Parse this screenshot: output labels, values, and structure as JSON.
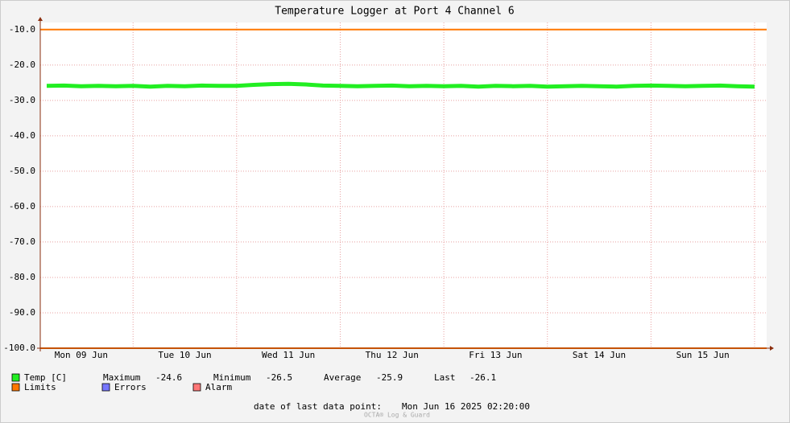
{
  "chart_data": {
    "type": "line",
    "title": "Temperature Logger at Port 4 Channel 6",
    "xlim": [
      2.5,
      170.8
    ],
    "xticks": [
      {
        "value": 12,
        "label": "Mon 09 Jun"
      },
      {
        "value": 36,
        "label": "Tue 10 Jun"
      },
      {
        "value": 60,
        "label": "Wed 11 Jun"
      },
      {
        "value": 84,
        "label": "Thu 12 Jun"
      },
      {
        "value": 108,
        "label": "Fri 13 Jun"
      },
      {
        "value": 132,
        "label": "Sat 14 Jun"
      },
      {
        "value": 156,
        "label": "Sun 15 Jun"
      }
    ],
    "xgrid": [
      24,
      48,
      72,
      96,
      120,
      144,
      168
    ],
    "ylim": [
      -100,
      -8
    ],
    "yticks": [
      {
        "value": -10,
        "label": "-10.0"
      },
      {
        "value": -20,
        "label": "-20.0"
      },
      {
        "value": -30,
        "label": "-30.0"
      },
      {
        "value": -40,
        "label": "-40.0"
      },
      {
        "value": -50,
        "label": "-50.0"
      },
      {
        "value": -60,
        "label": "-60.0"
      },
      {
        "value": -70,
        "label": "-70.0"
      },
      {
        "value": -80,
        "label": "-80.0"
      },
      {
        "value": -90,
        "label": "-90.0"
      },
      {
        "value": -100,
        "label": "-100.0"
      }
    ],
    "grid": true,
    "series": [
      {
        "name": "Temp [C]",
        "color": "#22ee22",
        "x": [
          4,
          8,
          12,
          16,
          20,
          24,
          28,
          32,
          36,
          40,
          44,
          48,
          52,
          56,
          60,
          64,
          68,
          72,
          76,
          80,
          84,
          88,
          92,
          96,
          100,
          104,
          108,
          112,
          116,
          120,
          124,
          128,
          132,
          136,
          140,
          144,
          148,
          152,
          156,
          160,
          164,
          168
        ],
        "values": [
          -25.9,
          -25.8,
          -26.0,
          -25.9,
          -26.0,
          -25.9,
          -26.1,
          -25.9,
          -26.0,
          -25.8,
          -25.9,
          -25.9,
          -25.6,
          -25.4,
          -25.3,
          -25.5,
          -25.8,
          -25.9,
          -26.0,
          -25.9,
          -25.8,
          -26.0,
          -25.9,
          -26.0,
          -25.9,
          -26.1,
          -25.9,
          -26.0,
          -25.9,
          -26.1,
          -26.0,
          -25.9,
          -26.0,
          -26.1,
          -25.9,
          -25.8,
          -25.9,
          -26.0,
          -25.9,
          -25.8,
          -26.0,
          -26.1
        ]
      }
    ],
    "limits": {
      "name": "Limits",
      "color": "#ff7700",
      "values": [
        -10,
        -100
      ]
    },
    "legend_extra": [
      {
        "name": "Errors",
        "color": "#7777ff"
      },
      {
        "name": "Alarm",
        "color": "#ff7777"
      }
    ],
    "stats": [
      {
        "label": "Maximum",
        "value": -24.6
      },
      {
        "label": "Minimum",
        "value": -26.5
      },
      {
        "label": "Average",
        "value": -25.9
      },
      {
        "label": "Last",
        "value": -26.1
      }
    ],
    "footer_label": "date of last data point:",
    "footer_date": "Mon Jun 16 2025 02:20:00",
    "watermark": "OCTA® Log & Guard"
  }
}
